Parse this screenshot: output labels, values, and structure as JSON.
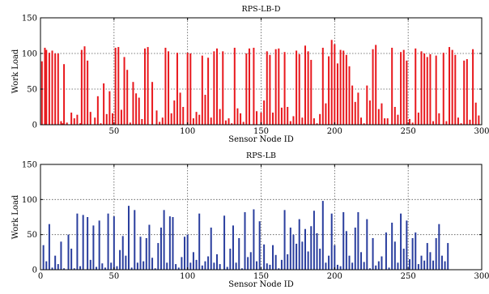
{
  "chart_data": [
    {
      "type": "bar",
      "title": "RPS-LB-D",
      "xlabel": "Sensor Node ID",
      "ylabel": "Work Load",
      "xlim": [
        0,
        300
      ],
      "ylim": [
        0,
        150
      ],
      "xticks": [
        50,
        100,
        150,
        200,
        250,
        300
      ],
      "yticks": [
        0,
        50,
        100,
        150
      ],
      "grid": true,
      "color": "#e8181d",
      "x_start": 1,
      "values": [
        89,
        0,
        108,
        105,
        0,
        101,
        0,
        104,
        0,
        100,
        0,
        100,
        0,
        5,
        2,
        85,
        0,
        3,
        0,
        0,
        17,
        0,
        9,
        0,
        14,
        0,
        2,
        105,
        0,
        110,
        0,
        90,
        0,
        18,
        0,
        0,
        10,
        0,
        40,
        0,
        2,
        0,
        58,
        0,
        15,
        0,
        47,
        0,
        16,
        0,
        108,
        0,
        109,
        0,
        21,
        0,
        95,
        0,
        77,
        0,
        3,
        0,
        60,
        0,
        44,
        0,
        38,
        0,
        8,
        0,
        107,
        0,
        109,
        0,
        0,
        60,
        0,
        0,
        20,
        0,
        4,
        0,
        10,
        0,
        108,
        0,
        103,
        0,
        16,
        0,
        34,
        0,
        101,
        0,
        45,
        0,
        25,
        0,
        0,
        101,
        0,
        100,
        0,
        9,
        0,
        18,
        0,
        14,
        0,
        97,
        0,
        42,
        0,
        94,
        0,
        10,
        0,
        103,
        0,
        107,
        0,
        22,
        0,
        103,
        0,
        6,
        0,
        9,
        0,
        2,
        0,
        108,
        0,
        23,
        0,
        16,
        0,
        4,
        0,
        100,
        0,
        107,
        0,
        0,
        108,
        0,
        19,
        0,
        0,
        17,
        0,
        34,
        0,
        103,
        0,
        98,
        0,
        17,
        0,
        106,
        0,
        107,
        0,
        24,
        0,
        102,
        0,
        25,
        0,
        5,
        0,
        12,
        0,
        104,
        0,
        99,
        0,
        10,
        0,
        111,
        0,
        103,
        0,
        91,
        0,
        9,
        0,
        2,
        0,
        15,
        0,
        108,
        0,
        30,
        0,
        96,
        0,
        119,
        0,
        113,
        0,
        86,
        0,
        105,
        0,
        104,
        0,
        98,
        0,
        82,
        0,
        55,
        0,
        32,
        0,
        45,
        0,
        10,
        0,
        2,
        0,
        55,
        0,
        34,
        0,
        106,
        0,
        112,
        0,
        22,
        0,
        30,
        0,
        9,
        0,
        9,
        0,
        0,
        108,
        0,
        25,
        0,
        14,
        0,
        102,
        0,
        105,
        0,
        90,
        0,
        8,
        0,
        3,
        0,
        107,
        0,
        17,
        0,
        103,
        0,
        100,
        0,
        95,
        0,
        99,
        0,
        5,
        0,
        97,
        0,
        16,
        0,
        0,
        101,
        0,
        5,
        0,
        109,
        0,
        105,
        0,
        98,
        0,
        10,
        0,
        2,
        0,
        90,
        0,
        92,
        0,
        7,
        0,
        106,
        0,
        31,
        0,
        13,
        0
      ]
    },
    {
      "type": "bar",
      "title": "RPS-LB",
      "xlabel": "Sensor Node ID",
      "ylabel": "Work Load",
      "xlim": [
        0,
        300
      ],
      "ylim": [
        0,
        150
      ],
      "xticks": [
        0,
        50,
        100,
        150,
        200,
        250,
        300
      ],
      "yticks": [
        0,
        50,
        100,
        150
      ],
      "grid": true,
      "color": "#2a3e9e",
      "x_start": 1,
      "values": [
        0,
        35,
        0,
        12,
        0,
        65,
        0,
        3,
        0,
        20,
        0,
        8,
        0,
        40,
        0,
        2,
        0,
        0,
        50,
        0,
        30,
        0,
        2,
        0,
        80,
        0,
        5,
        0,
        78,
        0,
        0,
        75,
        0,
        14,
        0,
        63,
        0,
        4,
        0,
        70,
        0,
        9,
        0,
        3,
        0,
        80,
        0,
        10,
        0,
        76,
        0,
        5,
        0,
        28,
        0,
        48,
        0,
        20,
        0,
        91,
        0,
        3,
        0,
        85,
        0,
        10,
        0,
        47,
        0,
        12,
        0,
        45,
        0,
        64,
        0,
        17,
        0,
        2,
        0,
        38,
        0,
        60,
        0,
        85,
        0,
        10,
        0,
        76,
        0,
        75,
        0,
        8,
        0,
        3,
        0,
        18,
        0,
        47,
        0,
        50,
        0,
        10,
        0,
        25,
        0,
        14,
        0,
        80,
        0,
        6,
        0,
        12,
        0,
        19,
        0,
        60,
        0,
        10,
        0,
        22,
        0,
        8,
        0,
        0,
        77,
        0,
        4,
        0,
        30,
        0,
        63,
        0,
        10,
        0,
        45,
        0,
        2,
        0,
        82,
        0,
        18,
        0,
        25,
        0,
        86,
        0,
        12,
        0,
        69,
        0,
        0,
        36,
        0,
        9,
        0,
        7,
        0,
        35,
        0,
        21,
        0,
        2,
        0,
        14,
        0,
        85,
        0,
        22,
        0,
        60,
        0,
        50,
        0,
        37,
        0,
        72,
        0,
        40,
        0,
        58,
        0,
        26,
        0,
        62,
        0,
        84,
        0,
        52,
        0,
        30,
        0,
        98,
        0,
        10,
        0,
        20,
        0,
        80,
        0,
        35,
        0,
        7,
        0,
        5,
        0,
        82,
        0,
        55,
        0,
        20,
        0,
        10,
        0,
        60,
        0,
        82,
        0,
        25,
        0,
        11,
        0,
        72,
        0,
        2,
        0,
        45,
        0,
        6,
        0,
        12,
        0,
        19,
        0,
        0,
        53,
        0,
        3,
        0,
        67,
        0,
        40,
        0,
        10,
        0,
        80,
        0,
        30,
        0,
        70,
        0,
        15,
        0,
        45,
        0,
        53,
        0,
        8,
        0,
        20,
        0,
        13,
        0,
        38,
        0,
        25,
        0,
        13,
        0,
        45,
        0,
        65,
        0,
        20,
        0,
        12,
        0,
        38,
        0
      ]
    }
  ]
}
